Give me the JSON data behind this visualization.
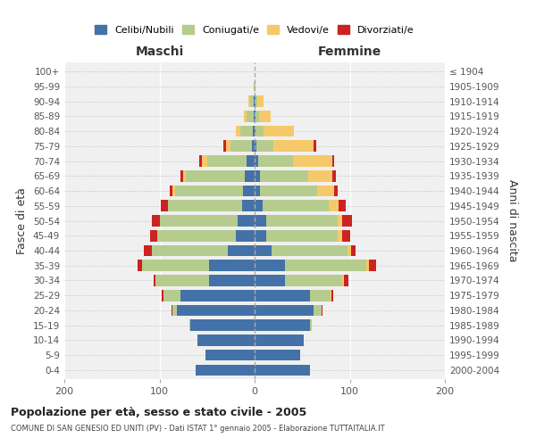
{
  "age_groups": [
    "100+",
    "95-99",
    "90-94",
    "85-89",
    "80-84",
    "75-79",
    "70-74",
    "65-69",
    "60-64",
    "55-59",
    "50-54",
    "45-49",
    "40-44",
    "35-39",
    "30-34",
    "25-29",
    "20-24",
    "15-19",
    "10-14",
    "5-9",
    "0-4"
  ],
  "birth_years": [
    "≤ 1904",
    "1905-1909",
    "1910-1914",
    "1915-1919",
    "1920-1924",
    "1925-1929",
    "1930-1934",
    "1935-1939",
    "1940-1944",
    "1945-1949",
    "1950-1954",
    "1955-1959",
    "1960-1964",
    "1965-1969",
    "1970-1974",
    "1975-1979",
    "1980-1984",
    "1985-1989",
    "1990-1994",
    "1995-1999",
    "2000-2004"
  ],
  "maschi": {
    "celibi": [
      0,
      0,
      1,
      1,
      2,
      3,
      8,
      10,
      12,
      13,
      18,
      20,
      28,
      48,
      48,
      78,
      82,
      68,
      60,
      52,
      62
    ],
    "coniugati": [
      0,
      1,
      4,
      7,
      13,
      22,
      42,
      62,
      72,
      78,
      82,
      82,
      80,
      70,
      56,
      18,
      4,
      1,
      0,
      0,
      0
    ],
    "vedovi": [
      0,
      0,
      2,
      3,
      5,
      5,
      5,
      3,
      2,
      0,
      0,
      0,
      0,
      0,
      0,
      0,
      0,
      0,
      0,
      0,
      0
    ],
    "divorziati": [
      0,
      0,
      0,
      0,
      0,
      3,
      3,
      3,
      3,
      8,
      8,
      8,
      8,
      5,
      2,
      2,
      1,
      0,
      0,
      0,
      0
    ]
  },
  "femmine": {
    "nubili": [
      0,
      0,
      1,
      1,
      1,
      2,
      4,
      6,
      6,
      8,
      12,
      12,
      18,
      32,
      32,
      58,
      62,
      58,
      52,
      48,
      58
    ],
    "coniugate": [
      0,
      0,
      2,
      4,
      8,
      18,
      36,
      50,
      60,
      70,
      75,
      75,
      80,
      85,
      60,
      22,
      8,
      2,
      0,
      0,
      0
    ],
    "vedove": [
      0,
      1,
      6,
      12,
      32,
      42,
      42,
      26,
      18,
      10,
      5,
      5,
      3,
      3,
      2,
      1,
      0,
      0,
      0,
      0,
      0
    ],
    "divorziate": [
      0,
      0,
      0,
      0,
      0,
      3,
      2,
      3,
      3,
      8,
      10,
      8,
      5,
      8,
      5,
      2,
      1,
      0,
      0,
      0,
      0
    ]
  },
  "colors": {
    "celibi_nubili": "#4472a8",
    "coniugati": "#b5cc8e",
    "vedovi": "#f5c96a",
    "divorziati": "#cc2222"
  },
  "xlim": 200,
  "title": "Popolazione per età, sesso e stato civile - 2005",
  "subtitle": "COMUNE DI SAN GENESIO ED UNITI (PV) - Dati ISTAT 1° gennaio 2005 - Elaborazione TUTTAITALIA.IT",
  "ylabel_left": "Fasce di età",
  "ylabel_right": "Anni di nascita",
  "xlabel_left": "Maschi",
  "xlabel_right": "Femmine",
  "legend_labels": [
    "Celibi/Nubili",
    "Coniugati/e",
    "Vedovi/e",
    "Divorziati/e"
  ],
  "background_color": "#f0f0f0"
}
